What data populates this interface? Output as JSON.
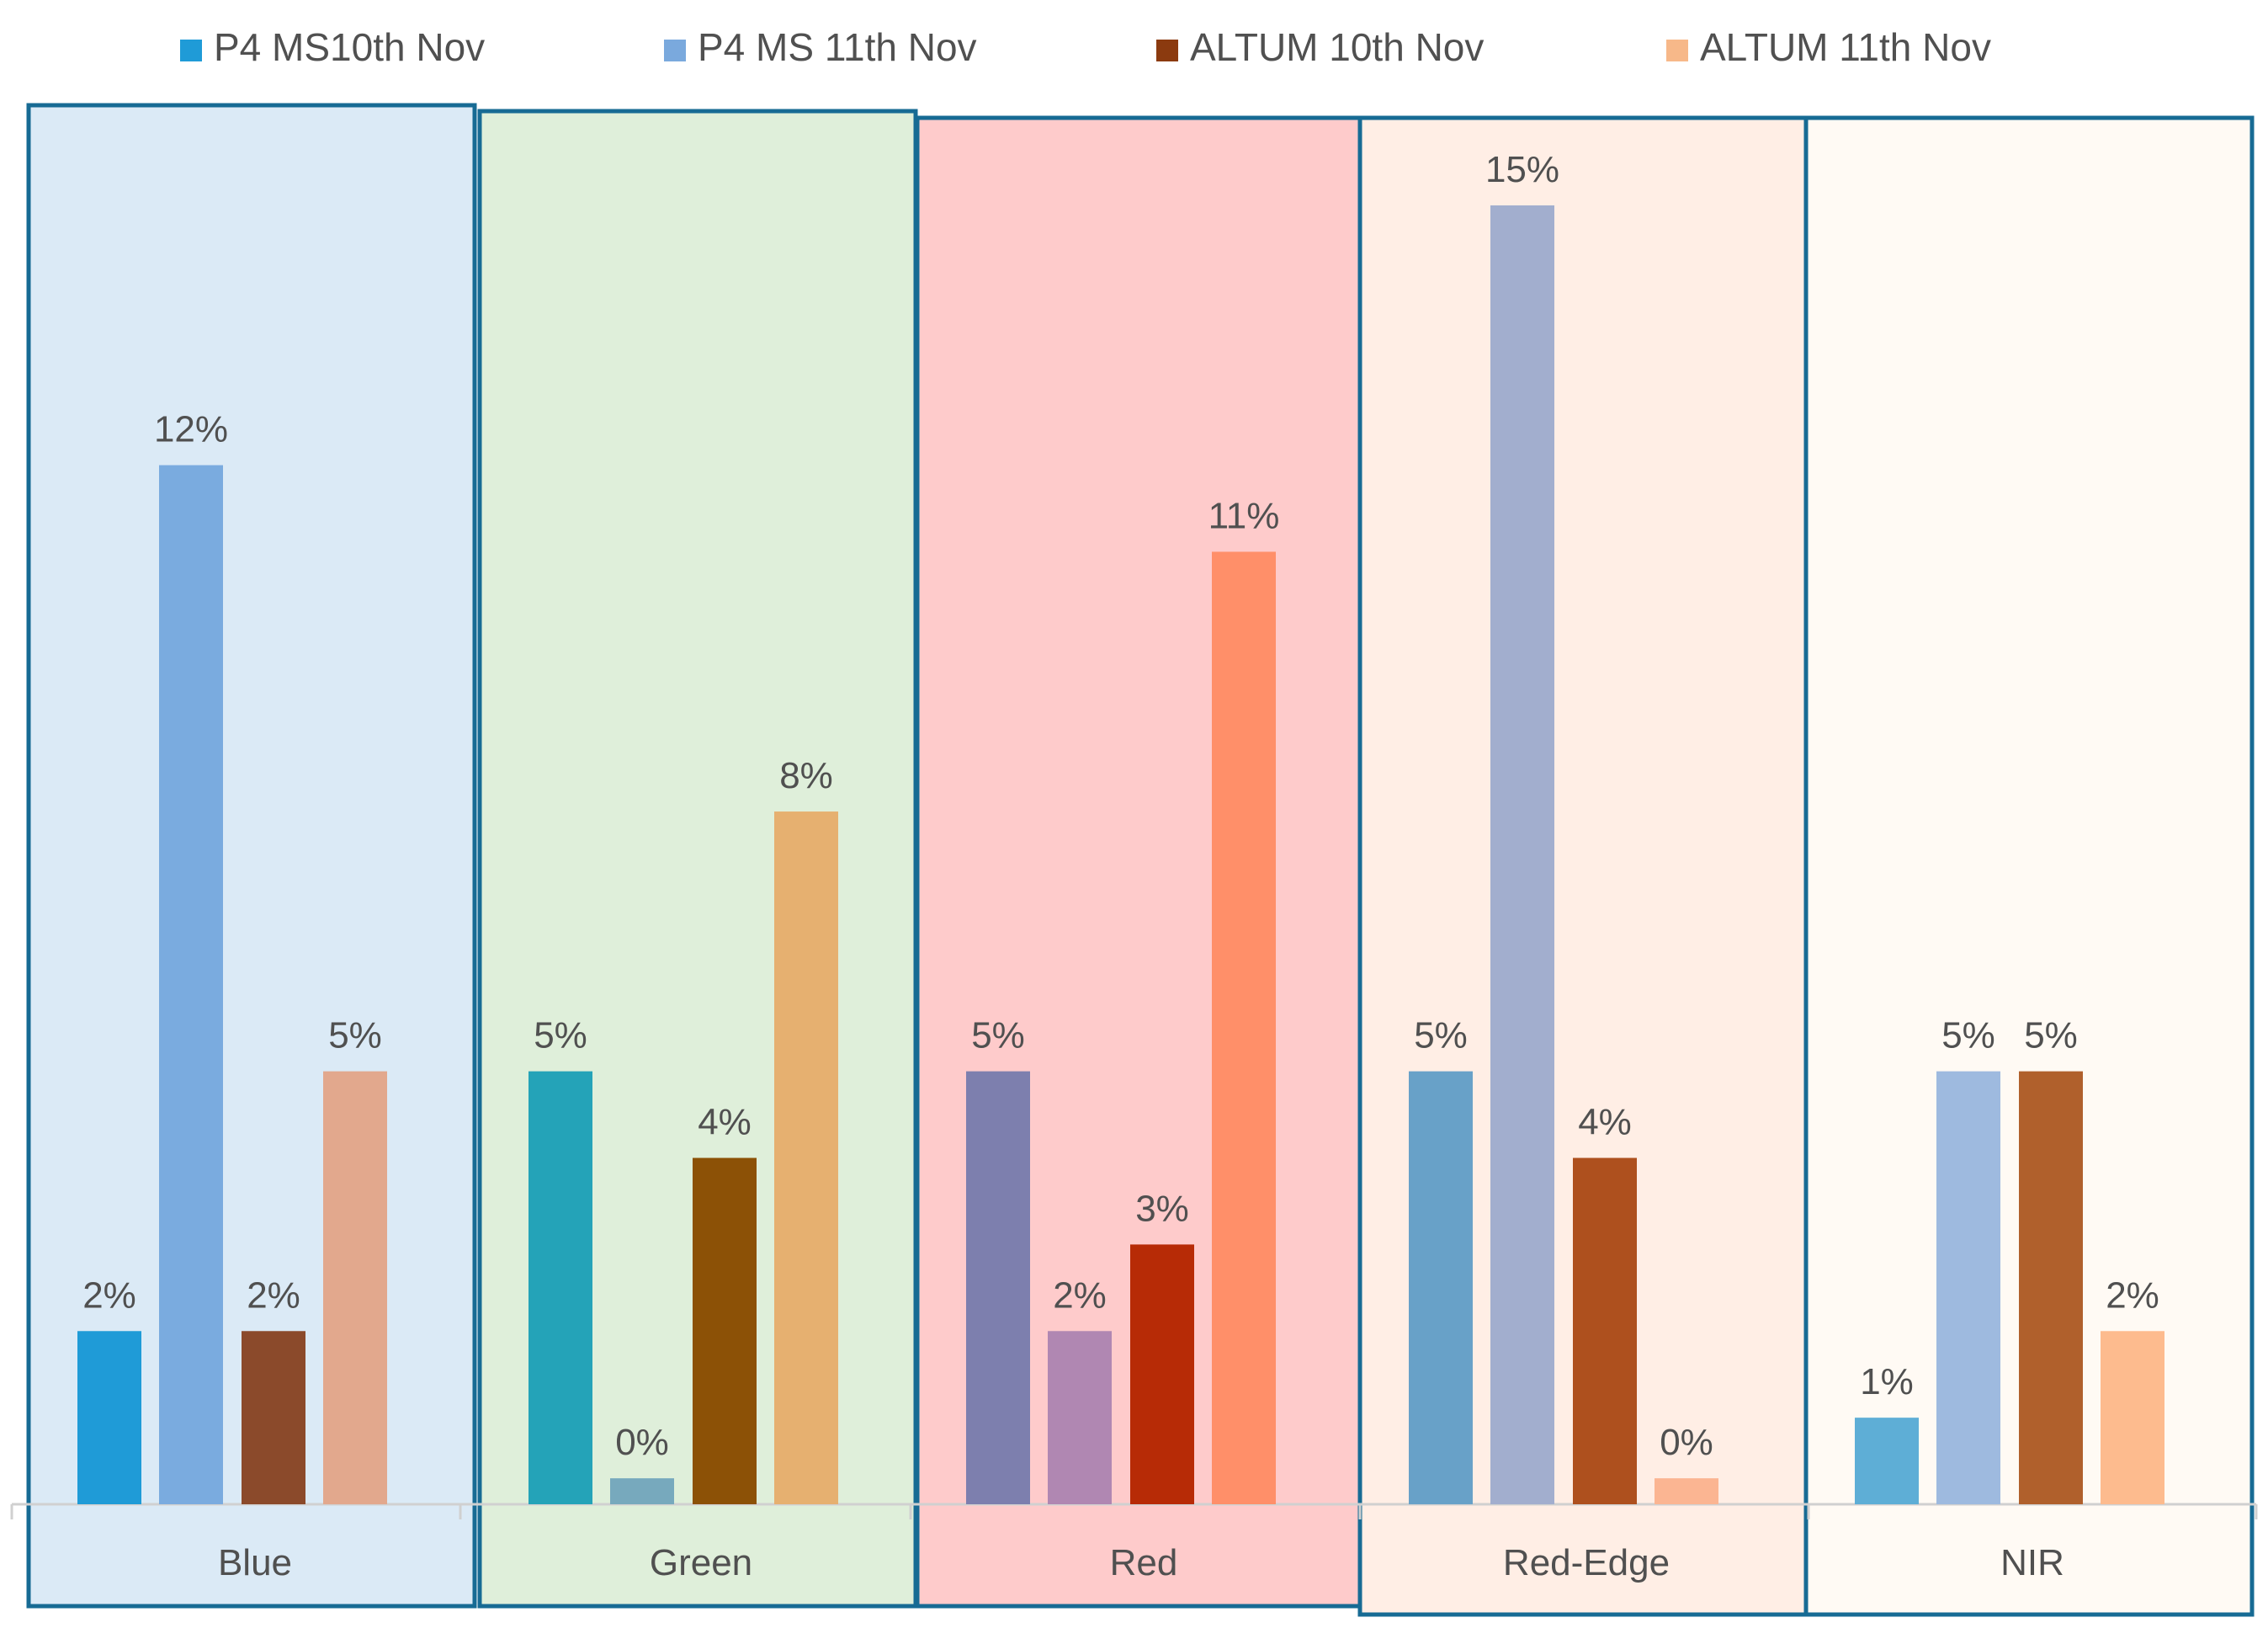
{
  "chart_data": {
    "type": "bar",
    "title": "",
    "xlabel": "",
    "ylabel": "",
    "ylim": [
      0,
      16
    ],
    "grid": false,
    "legend_position": "top",
    "categories": [
      "Blue",
      "Green",
      "Red",
      "Red-Edge",
      "NIR"
    ],
    "series": [
      {
        "name": "P4 MS10th Nov",
        "values": [
          2,
          5,
          5,
          5,
          1
        ]
      },
      {
        "name": "P4 MS 11th Nov",
        "values": [
          12,
          0.3,
          2,
          15,
          5
        ]
      },
      {
        "name": "ALTUM 10th Nov",
        "values": [
          2,
          4,
          3,
          4,
          5
        ]
      },
      {
        "name": "ALTUM 11th Nov",
        "values": [
          5,
          8,
          11,
          0.3,
          2
        ]
      }
    ],
    "data_labels": [
      [
        "2%",
        "5%",
        "5%",
        "5%",
        "1%"
      ],
      [
        "12%",
        "0%",
        "2%",
        "15%",
        "5%"
      ],
      [
        "2%",
        "4%",
        "3%",
        "4%",
        "5%"
      ],
      [
        "5%",
        "8%",
        "11%",
        "0%",
        "2%"
      ]
    ],
    "legend_colors": [
      "#1f9bd7",
      "#7aa9dd",
      "#8b3a0f",
      "#f7b889"
    ],
    "bar_colors": [
      [
        "#1f9bd7",
        "#7aabdf",
        "#8b4a2b",
        "#e2a88d"
      ],
      [
        "#24a3b8",
        "#77a9bd",
        "#8c5106",
        "#e6b070"
      ],
      [
        "#7d7fae",
        "#b087b2",
        "#b72b06",
        "#ff8f69"
      ],
      [
        "#68a1c8",
        "#a2aece",
        "#ae501e",
        "#fbb592"
      ],
      [
        "#5eaed6",
        "#9ebadf",
        "#b0602c",
        "#fdbb8e"
      ]
    ],
    "panel_fills": [
      "#dbeaf6",
      "#dfefda",
      "#fecbcb",
      "#ffeee5",
      "#fffaf4"
    ],
    "panel_border_color": "#176b94",
    "label_color": "#505050",
    "axis_color": "#d0d0d0"
  }
}
